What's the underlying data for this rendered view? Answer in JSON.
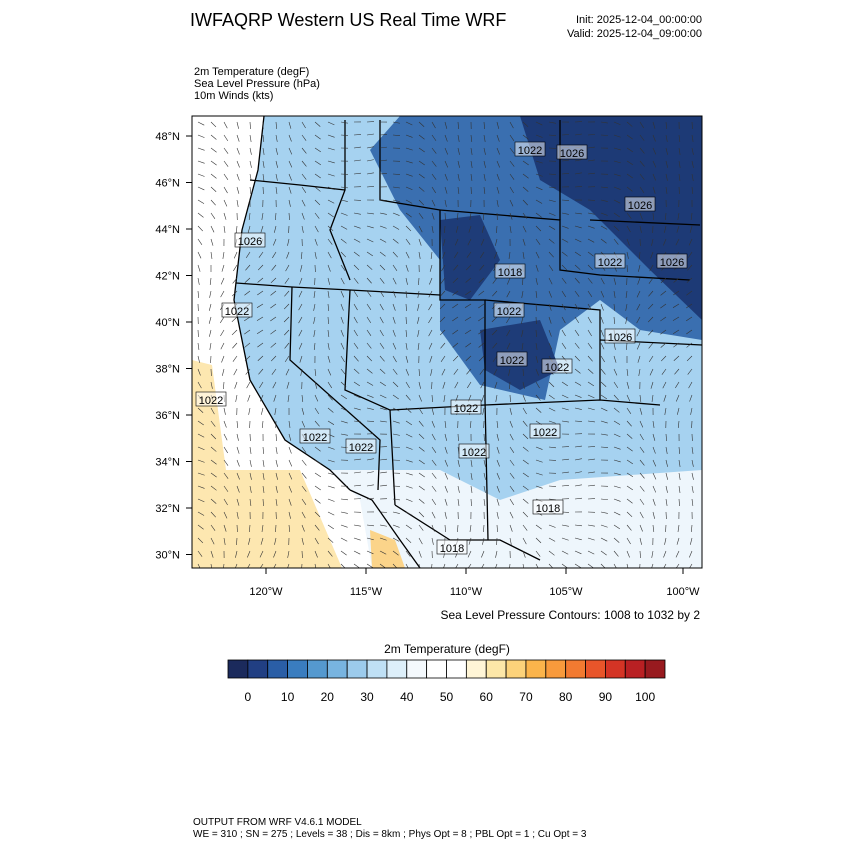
{
  "header": {
    "title": "IWFAQRP Western US Real Time WRF",
    "init": "Init: 2025-12-04_00:00:00",
    "valid": "Valid: 2025-12-04_09:00:00",
    "fields": [
      "2m Temperature   (degF)",
      "Sea Level Pressure   (hPa)",
      "10m Winds   (kts)"
    ]
  },
  "map": {
    "lat_labels": [
      "48°N",
      "46°N",
      "44°N",
      "42°N",
      "40°N",
      "38°N",
      "36°N",
      "34°N",
      "32°N",
      "30°N"
    ],
    "lon_labels": [
      "120°W",
      "115°W",
      "110°W",
      "105°W",
      "100°W"
    ],
    "contour_labels": [
      "1026",
      "1022",
      "1022",
      "1022",
      "1022",
      "1022",
      "1022",
      "1022",
      "1018",
      "1018",
      "1026",
      "1022",
      "1026",
      "1022",
      "1022",
      "1018",
      "1026",
      "1022",
      "1026",
      "1022"
    ],
    "contour_note": "Sea Level Pressure Contours: 1008 to 1032 by 2"
  },
  "colorbar": {
    "title": "2m Temperature  (degF)",
    "range": [
      -5,
      105
    ],
    "colors": [
      "#1b2a5c",
      "#213f83",
      "#2a5ea6",
      "#3a7dbf",
      "#5599cf",
      "#78b4e0",
      "#9ccbec",
      "#bfe0f5",
      "#ddeffa",
      "#f4f9fd",
      "#ffffff",
      "#ffffff",
      "#fff5d6",
      "#fde7a8",
      "#fcd27a",
      "#fbb44b",
      "#f89a3c",
      "#f27a31",
      "#e8552a",
      "#d43425",
      "#b92023",
      "#981a1f"
    ],
    "ticks": [
      0,
      10,
      20,
      30,
      40,
      50,
      60,
      70,
      80,
      90,
      100
    ]
  },
  "footer": {
    "line1": "OUTPUT FROM WRF V4.6.1 MODEL",
    "line2": "WE = 310 ; SN = 275 ; Levels = 38 ; Dis = 8km ; Phys Opt = 8 ; PBL Opt = 1 ; Cu Opt = 3"
  }
}
